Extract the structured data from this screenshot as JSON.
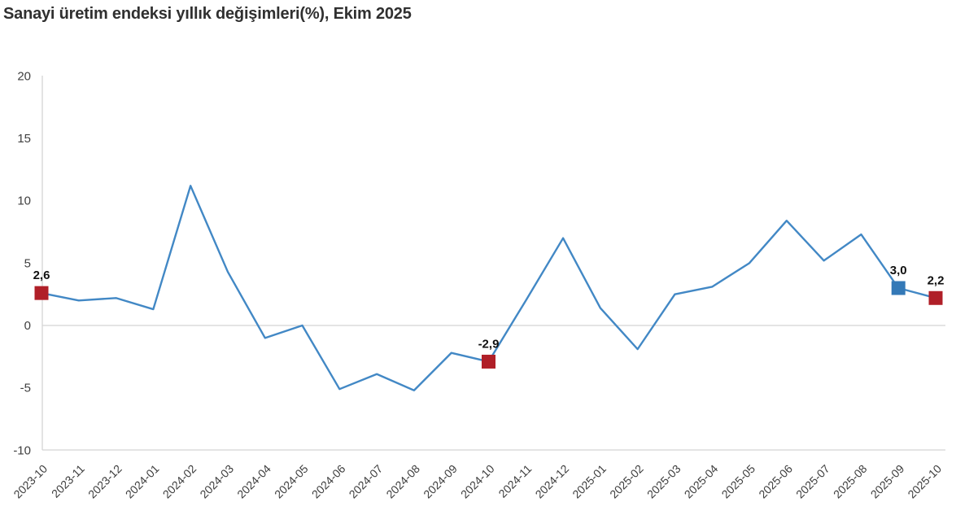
{
  "title": "Sanayi üretim endeksi yıllık değişimleri(%), Ekim 2025",
  "chart_data": {
    "type": "line",
    "title": "Sanayi üretim endeksi yıllık değişimleri(%), Ekim 2025",
    "categories": [
      "2023-10",
      "2023-11",
      "2023-12",
      "2024-01",
      "2024-02",
      "2024-03",
      "2024-04",
      "2024-05",
      "2024-06",
      "2024-07",
      "2024-08",
      "2024-09",
      "2024-10",
      "2024-11",
      "2024-12",
      "2025-01",
      "2025-02",
      "2025-03",
      "2025-04",
      "2025-05",
      "2025-06",
      "2025-07",
      "2025-08",
      "2025-09",
      "2025-10"
    ],
    "values": [
      2.6,
      2.0,
      2.2,
      1.3,
      11.2,
      4.3,
      -1.0,
      0.0,
      -5.1,
      -3.9,
      -5.2,
      -2.2,
      -2.9,
      2.0,
      7.0,
      1.4,
      -1.9,
      2.5,
      3.1,
      5.0,
      8.4,
      5.2,
      7.3,
      3.0,
      2.2
    ],
    "y_axis": {
      "ticks": [
        20,
        15,
        10,
        5,
        0,
        -5,
        -10
      ],
      "range": [
        -10,
        20
      ]
    },
    "x_axis": {
      "label_rotation_deg": -45
    },
    "grid": "zero-line-only",
    "legend": "none",
    "highlighted_points": [
      {
        "category": "2023-10",
        "index": 0,
        "label": "2,6",
        "marker_color": "#b01f28"
      },
      {
        "category": "2024-10",
        "index": 12,
        "label": "-2,9",
        "marker_color": "#b01f28"
      },
      {
        "category": "2025-09",
        "index": 23,
        "label": "3,0",
        "marker_color": "#3479b7"
      },
      {
        "category": "2025-10",
        "index": 24,
        "label": "2,2",
        "marker_color": "#b01f28"
      }
    ],
    "colors": {
      "line": "#4288c5",
      "marker_red": "#b01f28",
      "marker_blue": "#3479b7",
      "axis": "#d4d4d4",
      "tick_text": "#404040",
      "title_text": "#303030",
      "label_text": "#111111"
    }
  }
}
